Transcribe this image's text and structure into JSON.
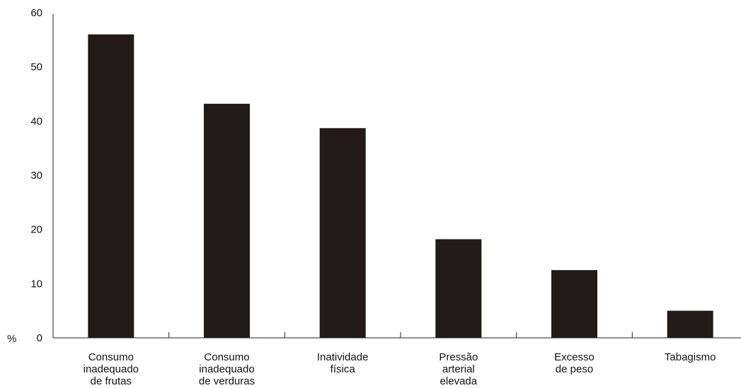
{
  "chart_data": {
    "type": "bar",
    "ylabel": "%",
    "ylim": [
      0,
      60
    ],
    "yticks": [
      "0",
      "10",
      "20",
      "30",
      "40",
      "50",
      "60"
    ],
    "grid": false,
    "categories": [
      [
        "Consumo",
        "inadequado",
        "de frutas"
      ],
      [
        "Consumo",
        "inadequado",
        "de verduras"
      ],
      [
        "Inatividade",
        "física"
      ],
      [
        "Pressão",
        "arterial",
        "elevada"
      ],
      [
        "Excesso",
        "de peso"
      ],
      [
        "Tabagismo"
      ]
    ],
    "values": [
      56,
      43.2,
      38.7,
      18.2,
      12.5,
      5.0
    ],
    "colors": {
      "bar": "#221a17",
      "axis": "#222222"
    }
  }
}
